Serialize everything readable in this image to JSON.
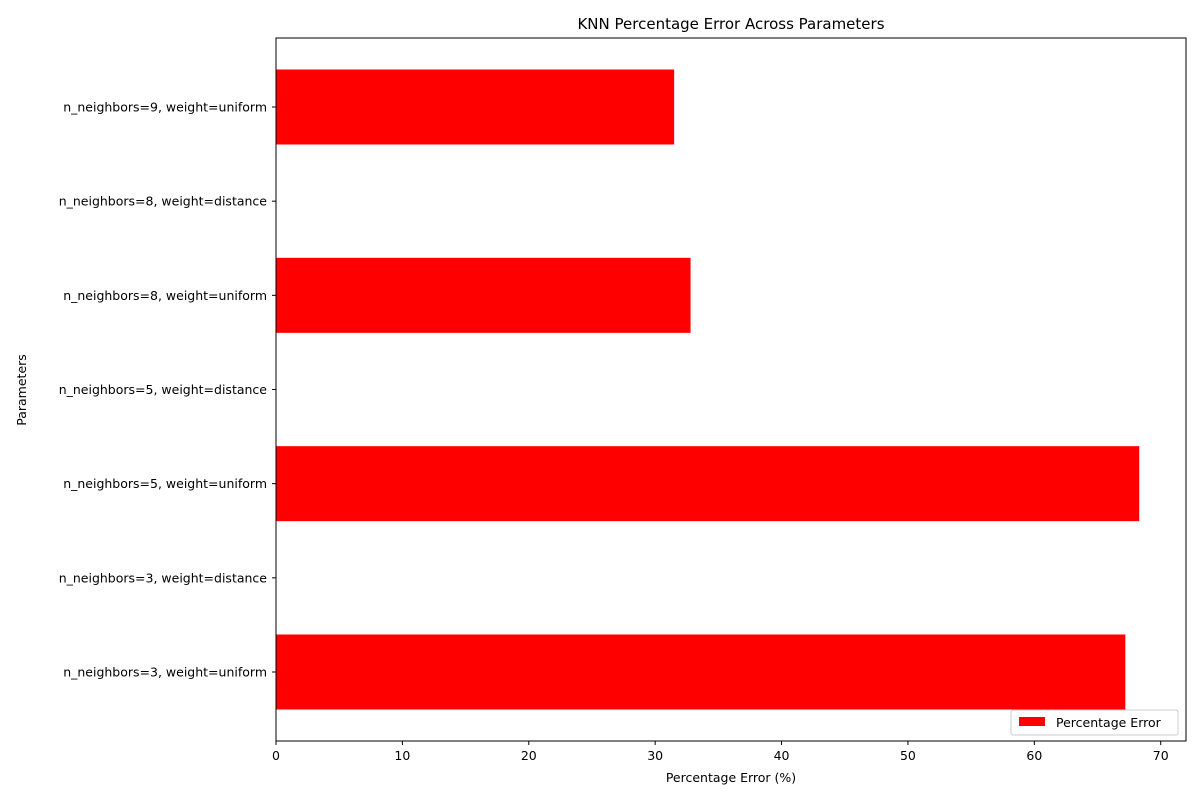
{
  "chart_data": {
    "type": "bar",
    "orientation": "horizontal",
    "title": "KNN Percentage Error Across Parameters",
    "xlabel": "Percentage Error (%)",
    "ylabel": "Parameters",
    "categories": [
      "n_neighbors=3, weight=uniform",
      "n_neighbors=3, weight=distance",
      "n_neighbors=5, weight=uniform",
      "n_neighbors=5, weight=distance",
      "n_neighbors=8, weight=uniform",
      "n_neighbors=8, weight=distance",
      "n_neighbors=9, weight=uniform"
    ],
    "series": [
      {
        "name": "Percentage Error",
        "color": "#ff0000",
        "values": [
          67.2,
          0,
          68.3,
          0,
          32.8,
          0,
          31.5
        ]
      }
    ],
    "xlim": [
      0,
      72
    ],
    "xticks": [
      0,
      10,
      20,
      30,
      40,
      50,
      60,
      70
    ],
    "grid": false,
    "legend_position": "bottom-right"
  }
}
